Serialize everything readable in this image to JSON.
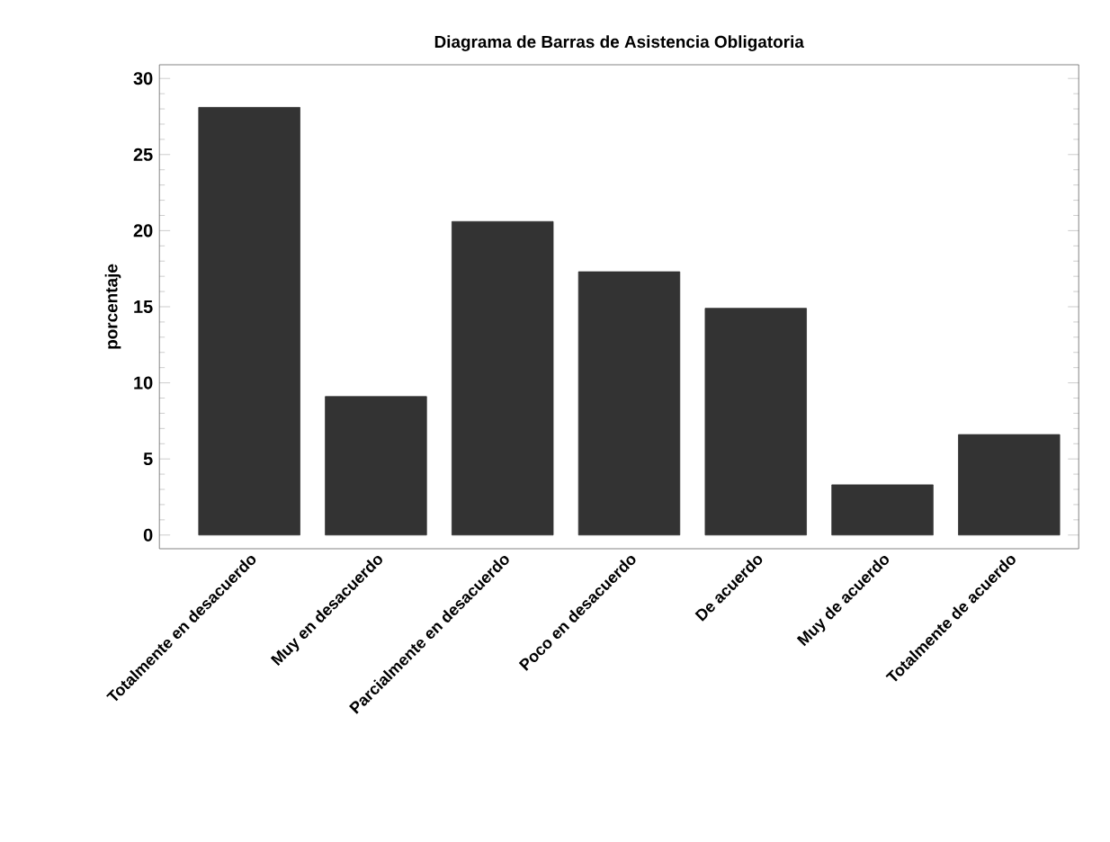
{
  "chart_data": {
    "type": "bar",
    "title": "Diagrama de Barras de Asistencia Obligatoria",
    "ylabel": "porcentaje",
    "categories": [
      "Totalmente en desacuerdo",
      "Muy en desacuerdo",
      "Parcialmente en desacuerdo",
      "Poco en desacuerdo",
      "De acuerdo",
      "Muy de acuerdo",
      "Totalmente de acuerdo"
    ],
    "values": [
      28.1,
      9.1,
      20.6,
      17.3,
      14.9,
      3.3,
      6.6
    ],
    "color": "#333333",
    "ylim": [
      -0.9,
      30.9
    ],
    "yticks": [
      0,
      5,
      10,
      15,
      20,
      25,
      30
    ]
  }
}
